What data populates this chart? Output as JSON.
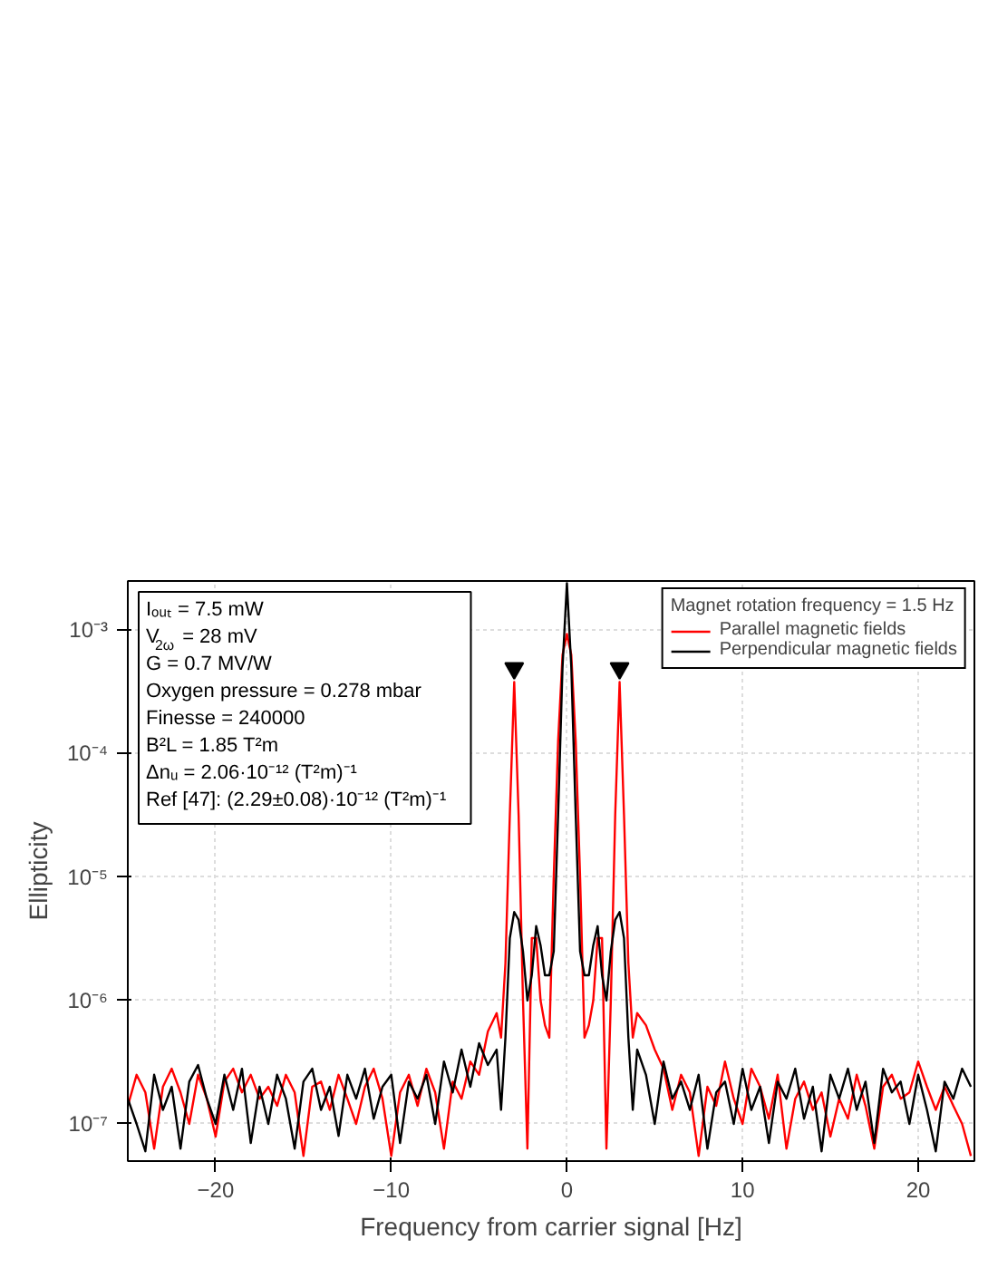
{
  "chart_data": {
    "type": "line",
    "xlabel": "Frequency from carrier signal [Hz]",
    "ylabel": "Ellipticity",
    "legend_title": "Magnet rotation frequency = 1.5 Hz",
    "legend": "top right",
    "grid": true,
    "log": "y",
    "xlim": [
      -25,
      23.2
    ],
    "ylim": [
      5e-08,
      0.0025
    ],
    "xticks": [
      -20,
      -10,
      0,
      10,
      20
    ],
    "yticks": [
      {
        "value": 1e-07,
        "label": "10⁻⁷"
      },
      {
        "value": 1e-06,
        "label": "10⁻⁶"
      },
      {
        "value": 1e-05,
        "label": "10⁻⁵"
      },
      {
        "value": 0.0001,
        "label": "10⁻⁴"
      },
      {
        "value": 0.001,
        "label": "10⁻³"
      }
    ],
    "annotations": [
      "Iₒᵤₜ = 7.5 mW",
      "V$_{2ω}$ = 28 mV",
      "G = 0.7 MV/W",
      "Oxygen pressure = 0.278 mbar",
      "Finesse = 240000",
      "B²L = 1.85 T²m",
      "Δnᵤ = 2.06·10⁻¹² (T²m)⁻¹",
      "Ref [47]: (2.29±0.08)·10⁻¹² (T²m)⁻¹"
    ],
    "x": [
      -25,
      -24.5,
      -24,
      -23.5,
      -23,
      -22.5,
      -22,
      -21.5,
      -21,
      -20.5,
      -20,
      -19.5,
      -19,
      -18.5,
      -18,
      -17.5,
      -17,
      -16.5,
      -16,
      -15.5,
      -15,
      -14.5,
      -14,
      -13.5,
      -13,
      -12.5,
      -12,
      -11.5,
      -11,
      -10.5,
      -10,
      -9.5,
      -9,
      -8.5,
      -8,
      -7.5,
      -7,
      -6.5,
      -6,
      -5.5,
      -5,
      -4.5,
      -4,
      -3.75,
      -3.5,
      -3.25,
      -3,
      -2.75,
      -2.5,
      -2.25,
      -2,
      -1.75,
      -1.5,
      -1.25,
      -1,
      -0.75,
      -0.5,
      -0.25,
      0,
      0.25,
      0.5,
      0.75,
      1,
      1.25,
      1.5,
      1.75,
      2,
      2.25,
      2.5,
      2.75,
      3,
      3.25,
      3.5,
      3.75,
      4,
      4.5,
      5,
      5.5,
      6,
      6.5,
      7,
      7.5,
      8,
      8.5,
      9,
      9.5,
      10,
      10.5,
      11,
      11.5,
      12,
      12.5,
      13,
      13.5,
      14,
      14.5,
      15,
      15.5,
      16,
      16.5,
      17,
      17.5,
      18,
      18.5,
      19,
      19.5,
      20,
      20.5,
      21,
      21.5,
      22,
      22.5,
      23
    ],
    "series": [
      {
        "name": "Parallel magnetic fields",
        "color": "#ff0000",
        "values": [
          1.4e-07,
          2.5e-07,
          1.8e-07,
          6.3e-08,
          2e-07,
          2.8e-07,
          1.8e-07,
          1e-07,
          2.5e-07,
          1.6e-07,
          7.9e-08,
          2.2e-07,
          2.8e-07,
          1.8e-07,
          2.5e-07,
          1.6e-07,
          2e-07,
          1.4e-07,
          2.5e-07,
          1.8e-07,
          5.5e-08,
          2e-07,
          2.2e-07,
          1.3e-07,
          2.5e-07,
          1.6e-07,
          1e-07,
          2e-07,
          2.8e-07,
          1.6e-07,
          5.5e-08,
          1.8e-07,
          2.5e-07,
          1.4e-07,
          2.8e-07,
          1.8e-07,
          6.3e-08,
          2.2e-07,
          1.6e-07,
          3.2e-07,
          2.5e-07,
          5.6e-07,
          7.9e-07,
          5e-07,
          2e-06,
          3.2e-05,
          0.00038,
          3.2e-05,
          1e-06,
          6.3e-08,
          3.2e-06,
          3.2e-06,
          1e-06,
          6.3e-07,
          5e-07,
          1e-05,
          0.000126,
          0.00063,
          0.00093,
          0.00063,
          0.000126,
          1e-05,
          5e-07,
          6.3e-07,
          1e-06,
          3.2e-06,
          3.2e-06,
          6.3e-08,
          1e-06,
          3.2e-05,
          0.00038,
          3.2e-05,
          2e-06,
          5e-07,
          7.9e-07,
          6.3e-07,
          4e-07,
          2.8e-07,
          1.3e-07,
          2.5e-07,
          1.8e-07,
          5.5e-08,
          2e-07,
          1.4e-07,
          3.2e-07,
          1.6e-07,
          1e-07,
          2.8e-07,
          2e-07,
          1.1e-07,
          2.5e-07,
          6.3e-08,
          1.6e-07,
          2.2e-07,
          1.3e-07,
          1.8e-07,
          7.9e-08,
          1.6e-07,
          1.1e-07,
          2.5e-07,
          1.4e-07,
          6.3e-08,
          2e-07,
          2.5e-07,
          1.6e-07,
          1.8e-07,
          3.2e-07,
          2e-07,
          1.3e-07,
          2e-07,
          1.4e-07,
          1e-07,
          5.5e-08
        ]
      },
      {
        "name": "Perpendicular magnetic fields",
        "color": "#000000",
        "values": [
          1.6e-07,
          1e-07,
          6e-08,
          2.5e-07,
          1.3e-07,
          2e-07,
          6.3e-08,
          2.2e-07,
          3e-07,
          1.6e-07,
          1e-07,
          2.5e-07,
          1.3e-07,
          2.8e-07,
          7e-08,
          2e-07,
          1e-07,
          2.5e-07,
          1.6e-07,
          6.3e-08,
          2.2e-07,
          2.8e-07,
          1.3e-07,
          2e-07,
          8e-08,
          2.5e-07,
          1.6e-07,
          2.8e-07,
          1.1e-07,
          2e-07,
          2.5e-07,
          7e-08,
          2.2e-07,
          1.6e-07,
          2.5e-07,
          1e-07,
          3.2e-07,
          1.8e-07,
          4e-07,
          2e-07,
          4.5e-07,
          3e-07,
          4e-07,
          1.3e-07,
          5e-07,
          3.2e-06,
          5.2e-06,
          4.5e-06,
          2.5e-06,
          1e-06,
          1.6e-06,
          4e-06,
          2.8e-06,
          1.6e-06,
          1.6e-06,
          2.5e-06,
          3.2e-05,
          0.0005,
          0.0024,
          0.0005,
          3.2e-05,
          2.5e-06,
          1.6e-06,
          1.6e-06,
          2.8e-06,
          4e-06,
          1.6e-06,
          1e-06,
          2.5e-06,
          4.5e-06,
          5.2e-06,
          3.2e-06,
          5e-07,
          1.3e-07,
          4e-07,
          2.5e-07,
          1e-07,
          3.2e-07,
          1.6e-07,
          2.2e-07,
          1.3e-07,
          2.5e-07,
          6.3e-08,
          1.8e-07,
          2.2e-07,
          1e-07,
          2.8e-07,
          1.3e-07,
          2e-07,
          7e-08,
          2.2e-07,
          1.6e-07,
          2.8e-07,
          1.1e-07,
          2e-07,
          6e-08,
          2.5e-07,
          1.6e-07,
          2.8e-07,
          1.3e-07,
          2.2e-07,
          7e-08,
          2.8e-07,
          1.8e-07,
          2.2e-07,
          1e-07,
          2.5e-07,
          1.3e-07,
          6e-08,
          2.2e-07,
          1.6e-07,
          2.8e-07,
          2e-07
        ]
      },
      {
        "type": "scatter",
        "marker": "triangle",
        "color": "#000000",
        "x": [
          -3,
          3
        ],
        "values": [
          0.00049,
          0.00049
        ]
      }
    ]
  }
}
